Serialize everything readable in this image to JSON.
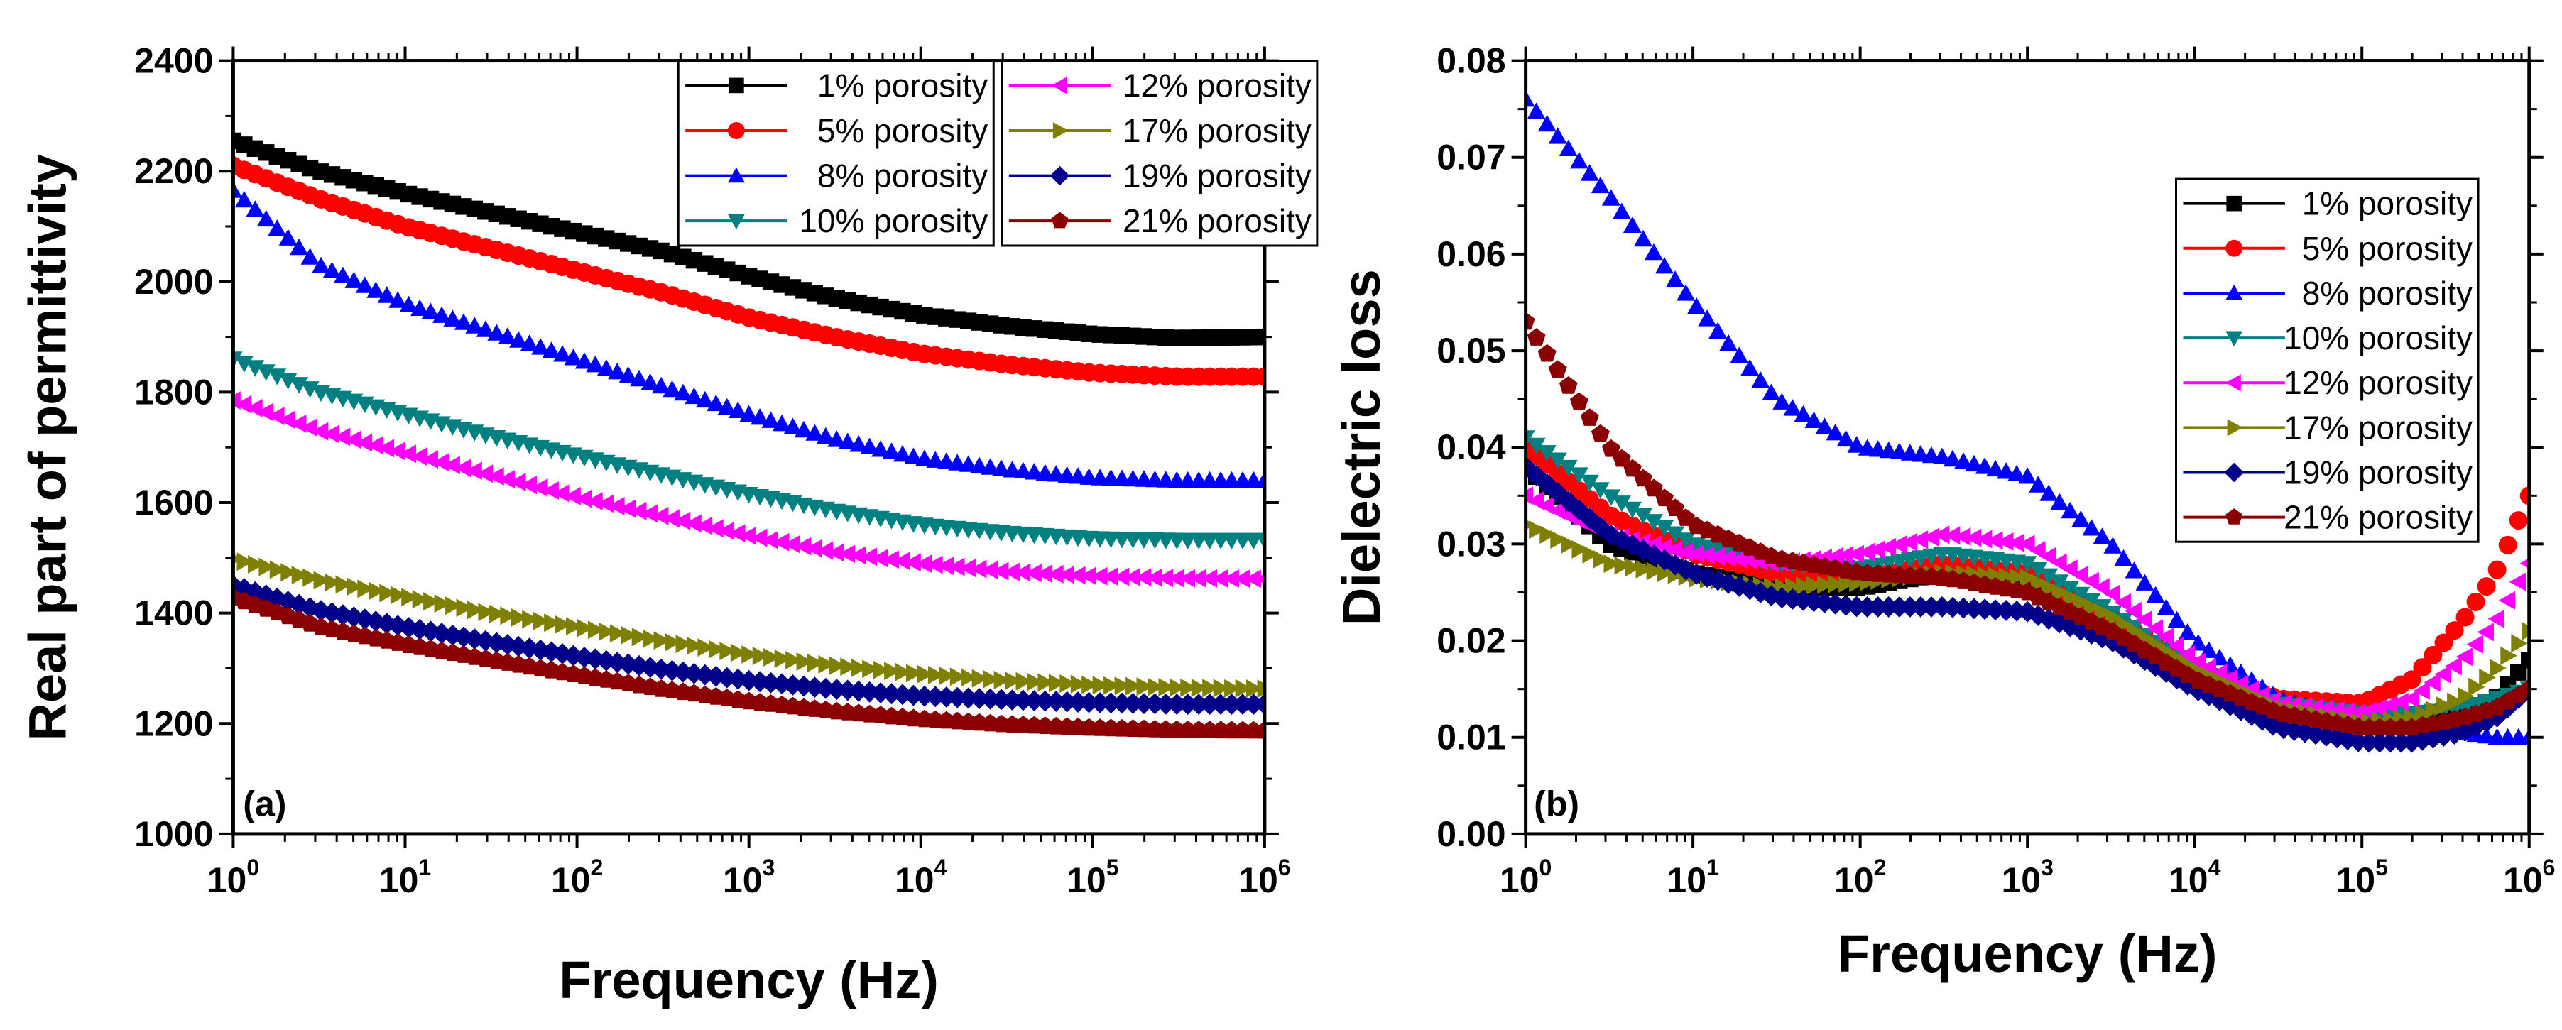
{
  "chart_data": [
    {
      "type": "scatter",
      "panel_label": "(a)",
      "xlabel": "Frequency (Hz)",
      "ylabel": "Real part of permittivity",
      "xscale": "log",
      "xlim": [
        1,
        1000000
      ],
      "ylim": [
        1000,
        2400
      ],
      "x_ticks": [
        {
          "base": "10",
          "exp": "0",
          "value": 1
        },
        {
          "base": "10",
          "exp": "1",
          "value": 10
        },
        {
          "base": "10",
          "exp": "2",
          "value": 100
        },
        {
          "base": "10",
          "exp": "3",
          "value": 1000
        },
        {
          "base": "10",
          "exp": "4",
          "value": 10000
        },
        {
          "base": "10",
          "exp": "5",
          "value": 100000
        },
        {
          "base": "10",
          "exp": "6",
          "value": 1000000
        }
      ],
      "y_ticks": [
        "1000",
        "1200",
        "1400",
        "1600",
        "1800",
        "2000",
        "2200",
        "2400"
      ],
      "legend_position": "top-right (two columns)",
      "series_x_log10": [
        0,
        0.5,
        1,
        1.5,
        2,
        2.5,
        3,
        3.5,
        4,
        4.5,
        5,
        5.5,
        6
      ],
      "series": [
        {
          "name": "1% porosity",
          "marker": "square",
          "color": "#000000",
          "values": [
            2255,
            2200,
            2160,
            2125,
            2090,
            2055,
            2010,
            1970,
            1940,
            1920,
            1905,
            1898,
            1900
          ]
        },
        {
          "name": "5% porosity",
          "marker": "circle",
          "color": "#ff0000",
          "values": [
            2210,
            2150,
            2100,
            2060,
            2020,
            1980,
            1935,
            1900,
            1870,
            1850,
            1835,
            1828,
            1828
          ]
        },
        {
          "name": "8% porosity",
          "marker": "triangle-up",
          "color": "#0000ff",
          "values": [
            2165,
            2030,
            1960,
            1910,
            1860,
            1810,
            1760,
            1715,
            1680,
            1660,
            1645,
            1640,
            1640
          ]
        },
        {
          "name": "10% porosity",
          "marker": "triangle-down",
          "color": "#008080",
          "values": [
            1860,
            1800,
            1760,
            1720,
            1685,
            1650,
            1615,
            1585,
            1560,
            1545,
            1535,
            1532,
            1532
          ]
        },
        {
          "name": "12% porosity",
          "marker": "triangle-left",
          "color": "#ff00ff",
          "values": [
            1785,
            1730,
            1690,
            1650,
            1610,
            1575,
            1540,
            1510,
            1490,
            1475,
            1467,
            1463,
            1462
          ]
        },
        {
          "name": "17% porosity",
          "marker": "triangle-right",
          "color": "#808000",
          "values": [
            1498,
            1460,
            1430,
            1400,
            1375,
            1350,
            1325,
            1305,
            1290,
            1278,
            1270,
            1265,
            1263
          ]
        },
        {
          "name": "19% porosity",
          "marker": "diamond",
          "color": "#00008b",
          "values": [
            1450,
            1405,
            1375,
            1348,
            1322,
            1298,
            1278,
            1262,
            1250,
            1243,
            1238,
            1235,
            1235
          ]
        },
        {
          "name": "21% porosity",
          "marker": "pentagon",
          "color": "#8b0000",
          "values": [
            1428,
            1375,
            1343,
            1315,
            1288,
            1262,
            1240,
            1222,
            1208,
            1198,
            1192,
            1188,
            1187
          ]
        }
      ]
    },
    {
      "type": "scatter",
      "panel_label": "(b)",
      "xlabel": "Frequency (Hz)",
      "ylabel": "Dielectric loss",
      "xscale": "log",
      "xlim": [
        1,
        1000000
      ],
      "ylim": [
        0,
        0.08
      ],
      "x_ticks": [
        {
          "base": "10",
          "exp": "0",
          "value": 1
        },
        {
          "base": "10",
          "exp": "1",
          "value": 10
        },
        {
          "base": "10",
          "exp": "2",
          "value": 100
        },
        {
          "base": "10",
          "exp": "3",
          "value": 1000
        },
        {
          "base": "10",
          "exp": "4",
          "value": 10000
        },
        {
          "base": "10",
          "exp": "5",
          "value": 100000
        },
        {
          "base": "10",
          "exp": "6",
          "value": 1000000
        }
      ],
      "y_ticks": [
        "0.00",
        "0.01",
        "0.02",
        "0.03",
        "0.04",
        "0.05",
        "0.06",
        "0.07",
        "0.08"
      ],
      "legend_position": "top-right",
      "series_x_log10": [
        0,
        0.5,
        1,
        1.5,
        2,
        2.5,
        3,
        3.5,
        4,
        4.5,
        5,
        5.3,
        5.6,
        5.8,
        6
      ],
      "series": [
        {
          "name": "1% porosity",
          "marker": "square",
          "color": "#000000",
          "values": [
            0.038,
            0.03,
            0.027,
            0.0255,
            0.0255,
            0.027,
            0.026,
            0.022,
            0.017,
            0.013,
            0.0115,
            0.0115,
            0.0125,
            0.014,
            0.018
          ]
        },
        {
          "name": "5% porosity",
          "marker": "circle",
          "color": "#ff0000",
          "values": [
            0.04,
            0.033,
            0.029,
            0.027,
            0.0265,
            0.028,
            0.027,
            0.0225,
            0.017,
            0.014,
            0.0135,
            0.016,
            0.022,
            0.027,
            0.035
          ]
        },
        {
          "name": "8% porosity",
          "marker": "triangle-up",
          "color": "#0000ff",
          "values": [
            0.076,
            0.066,
            0.055,
            0.045,
            0.04,
            0.039,
            0.037,
            0.03,
            0.02,
            0.014,
            0.0115,
            0.011,
            0.0105,
            0.01,
            0.01
          ]
        },
        {
          "name": "10% porosity",
          "marker": "triangle-down",
          "color": "#008080",
          "values": [
            0.041,
            0.035,
            0.03,
            0.028,
            0.0275,
            0.029,
            0.028,
            0.023,
            0.017,
            0.0135,
            0.0125,
            0.0125,
            0.013,
            0.014,
            0.015
          ]
        },
        {
          "name": "12% porosity",
          "marker": "triangle-left",
          "color": "#ff00ff",
          "values": [
            0.035,
            0.031,
            0.029,
            0.028,
            0.029,
            0.031,
            0.03,
            0.025,
            0.018,
            0.0135,
            0.0125,
            0.014,
            0.018,
            0.022,
            0.028
          ]
        },
        {
          "name": "17% porosity",
          "marker": "triangle-right",
          "color": "#808000",
          "values": [
            0.032,
            0.028,
            0.0265,
            0.0255,
            0.026,
            0.027,
            0.0265,
            0.0225,
            0.017,
            0.013,
            0.0115,
            0.012,
            0.014,
            0.017,
            0.021
          ]
        },
        {
          "name": "19% porosity",
          "marker": "diamond",
          "color": "#00008b",
          "values": [
            0.038,
            0.031,
            0.027,
            0.0245,
            0.0235,
            0.0235,
            0.023,
            0.02,
            0.015,
            0.011,
            0.0095,
            0.0095,
            0.0105,
            0.012,
            0.015
          ]
        },
        {
          "name": "21% porosity",
          "marker": "pentagon",
          "color": "#8b0000",
          "values": [
            0.053,
            0.04,
            0.032,
            0.0285,
            0.027,
            0.0265,
            0.025,
            0.021,
            0.016,
            0.0125,
            0.011,
            0.011,
            0.012,
            0.013,
            0.015
          ]
        }
      ]
    }
  ]
}
